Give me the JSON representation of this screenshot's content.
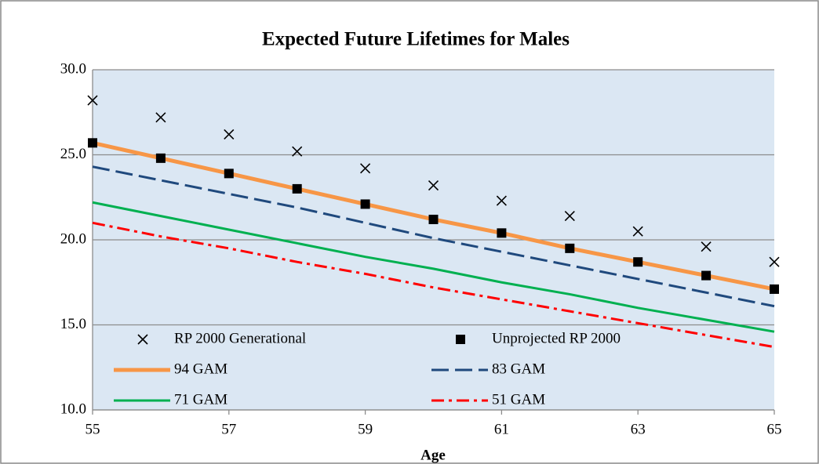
{
  "chart_data": {
    "type": "line",
    "title": "Expected Future  Lifetimes for Males",
    "x_label": "Age",
    "x": [
      55,
      56,
      57,
      58,
      59,
      60,
      61,
      62,
      63,
      64,
      65
    ],
    "xlim": [
      55,
      65
    ],
    "xticks": [
      55,
      57,
      59,
      61,
      63,
      65
    ],
    "ylim": [
      10,
      30
    ],
    "yticks": [
      {
        "value": 10,
        "label": "10.0"
      },
      {
        "value": 15,
        "label": "15.0"
      },
      {
        "value": 20,
        "label": "20.0"
      },
      {
        "value": 25,
        "label": "25.0"
      },
      {
        "value": 30,
        "label": "30.0"
      }
    ],
    "grid": true,
    "series": [
      {
        "name": "RP 2000  Generational",
        "color": "#000000",
        "marker": "x",
        "values": [
          28.2,
          27.2,
          26.2,
          25.2,
          24.2,
          23.2,
          22.3,
          21.4,
          20.5,
          19.6,
          18.7
        ]
      },
      {
        "name": "Unprojected RP 2000",
        "color": "#000000",
        "marker": "square",
        "values": [
          25.7,
          24.8,
          23.9,
          23.0,
          22.1,
          21.2,
          20.4,
          19.5,
          18.7,
          17.9,
          17.1
        ]
      },
      {
        "name": "94 GAM",
        "color": "#f79646",
        "dash": "solid",
        "values": [
          25.7,
          24.8,
          23.9,
          23.0,
          22.1,
          21.2,
          20.4,
          19.5,
          18.7,
          17.9,
          17.1
        ]
      },
      {
        "name": "83 GAM",
        "color": "#1f497d",
        "dash": "dash",
        "values": [
          24.3,
          23.5,
          22.7,
          21.9,
          21.0,
          20.1,
          19.3,
          18.5,
          17.7,
          16.9,
          16.1
        ]
      },
      {
        "name": "71 GAM",
        "color": "#00b050",
        "dash": "solid",
        "values": [
          22.2,
          21.4,
          20.6,
          19.8,
          19.0,
          18.3,
          17.5,
          16.8,
          16.0,
          15.3,
          14.6
        ]
      },
      {
        "name": "51 GAM",
        "color": "#ff0000",
        "dash": "dashdot",
        "values": [
          21.0,
          20.2,
          19.5,
          18.7,
          18.0,
          17.2,
          16.5,
          15.8,
          15.1,
          14.4,
          13.7
        ]
      }
    ]
  }
}
